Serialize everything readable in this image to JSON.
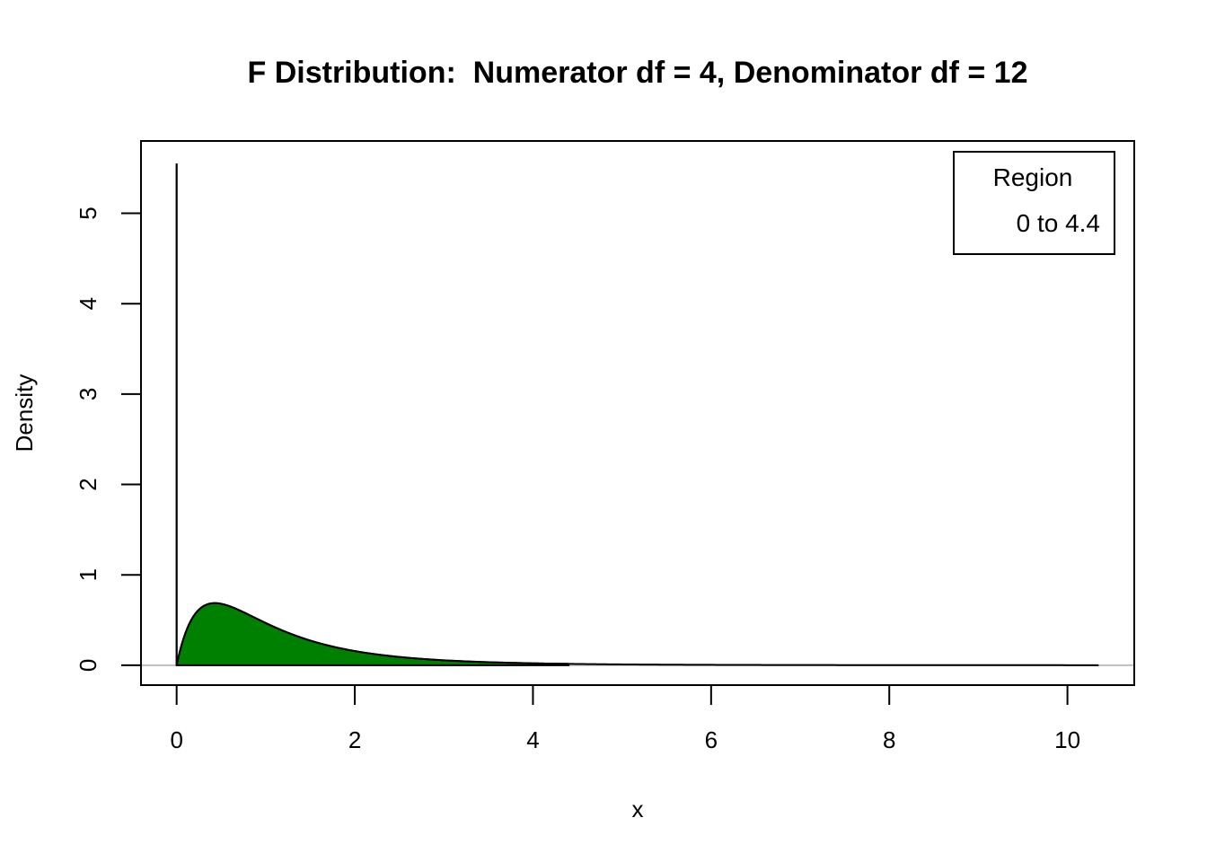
{
  "chart_data": {
    "type": "area",
    "title": "F Distribution:  Numerator df = 4, Denominator df = 12",
    "xlabel": "x",
    "ylabel": "Density",
    "xlim": [
      -0.4,
      10.75
    ],
    "ylim": [
      -0.22,
      5.8
    ],
    "x_ticks": [
      "0",
      "2",
      "4",
      "6",
      "8",
      "10"
    ],
    "y_ticks": [
      "0",
      "1",
      "2",
      "3",
      "4",
      "5"
    ],
    "distribution": {
      "name": "F",
      "df1": 4,
      "df2": 12
    },
    "curve_x_range": [
      0,
      10.35
    ],
    "shaded_region": [
      0,
      4.4
    ],
    "sample_points": [
      {
        "x": 0.0005,
        "y": 5.55
      },
      {
        "x": 0.02,
        "y": 3.1
      },
      {
        "x": 0.05,
        "y": 1.8
      },
      {
        "x": 0.1,
        "y": 1.25
      },
      {
        "x": 0.3,
        "y": 0.65
      },
      {
        "x": 0.5,
        "y": 0.45
      },
      {
        "x": 1.0,
        "y": 0.22
      },
      {
        "x": 2.0,
        "y": 0.1
      },
      {
        "x": 3.0,
        "y": 0.055
      },
      {
        "x": 4.4,
        "y": 0.025
      },
      {
        "x": 6.0,
        "y": 0.01
      },
      {
        "x": 8.0,
        "y": 0.004
      },
      {
        "x": 10.35,
        "y": 0.002
      }
    ],
    "legend": {
      "title": "Region",
      "entries": [
        "0 to 4.4"
      ],
      "position": "top-right"
    },
    "colors": {
      "fill": "#008000",
      "line": "#000000",
      "baseline": "#bebebe"
    },
    "grid": false
  }
}
